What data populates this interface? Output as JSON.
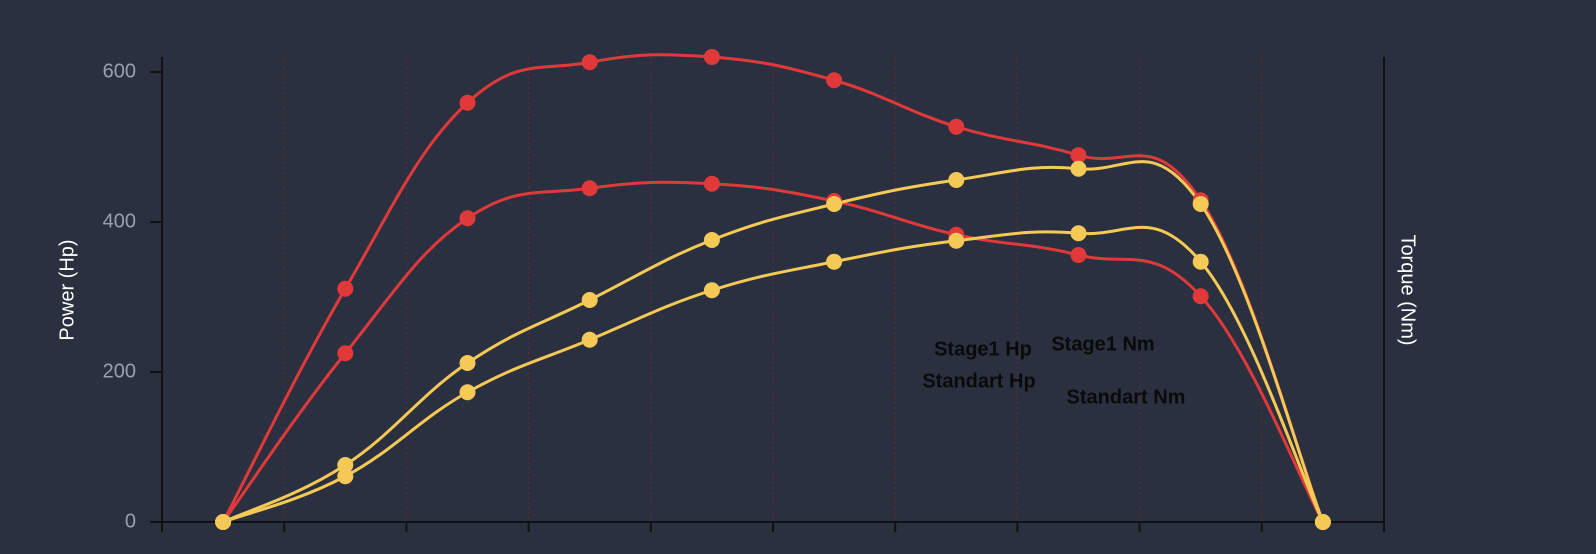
{
  "chart_data": {
    "type": "line",
    "ylabel": "Power (Hp)",
    "y2label": "Torque (Nm)",
    "categories": [
      null,
      null,
      null,
      null,
      null,
      null,
      null,
      null,
      null,
      null
    ],
    "ylim": [
      0,
      620
    ],
    "yticks": [
      0,
      200,
      400,
      600
    ],
    "series": [
      {
        "name": "Stage1 Hp",
        "color": "#e0393a",
        "values": [
          0,
          311,
          559,
          613,
          620,
          589,
          527,
          489,
          429,
          0
        ]
      },
      {
        "name": "Standart Hp",
        "color": "#e0393a",
        "values": [
          0,
          225,
          405,
          445,
          451,
          428,
          383,
          356,
          301,
          0
        ]
      },
      {
        "name": "Stage1 Nm",
        "color": "#f5c955",
        "values": [
          0,
          76,
          212,
          296,
          376,
          424,
          456,
          471,
          424,
          0
        ]
      },
      {
        "name": "Standart Nm",
        "color": "#f5c955",
        "values": [
          0,
          61,
          173,
          243,
          309,
          347,
          375,
          385,
          347,
          0
        ]
      }
    ]
  }
}
